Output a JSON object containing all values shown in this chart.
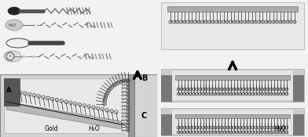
{
  "bg_color": "#e8e8e8",
  "panel_bg": "#e0e0e0",
  "water_bg": "#e8e8e8",
  "substrate_color": "#aaaaaa",
  "block_color": "#666666",
  "bar_color": "#999999",
  "lipid_color": "#333333",
  "label_A": "A",
  "label_B": "B",
  "label_C": "C",
  "label_gold": "Gold",
  "label_water_A": "H₂O",
  "label_water_C": "H₂O"
}
